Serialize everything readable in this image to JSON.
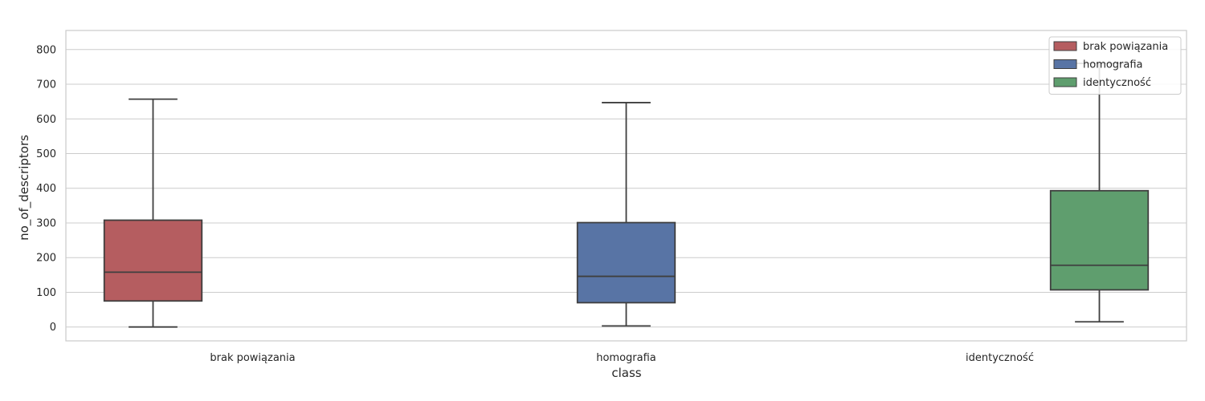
{
  "chart_data": {
    "type": "box",
    "xlabel": "class",
    "ylabel": "no_of_descriptors",
    "ylim": [
      -40,
      855
    ],
    "yticks": [
      0,
      100,
      200,
      300,
      400,
      500,
      600,
      700,
      800
    ],
    "grid": true,
    "legend_position": "top-right",
    "categories": [
      "brak powiązania",
      "homografia",
      "identyczność"
    ],
    "series": [
      {
        "name": "brak powiązania",
        "color": "#b55d60",
        "category": "brak powiązania",
        "whisker_low": 0,
        "q1": 75,
        "median": 158,
        "q3": 308,
        "whisker_high": 657
      },
      {
        "name": "homografia",
        "color": "#5874a5",
        "category": "homografia",
        "whisker_low": 3,
        "q1": 70,
        "median": 146,
        "q3": 301,
        "whisker_high": 647
      },
      {
        "name": "identyczność",
        "color": "#5f9e6e",
        "category": "identyczność",
        "whisker_low": 15,
        "q1": 107,
        "median": 178,
        "q3": 393,
        "whisker_high": 760
      }
    ]
  }
}
